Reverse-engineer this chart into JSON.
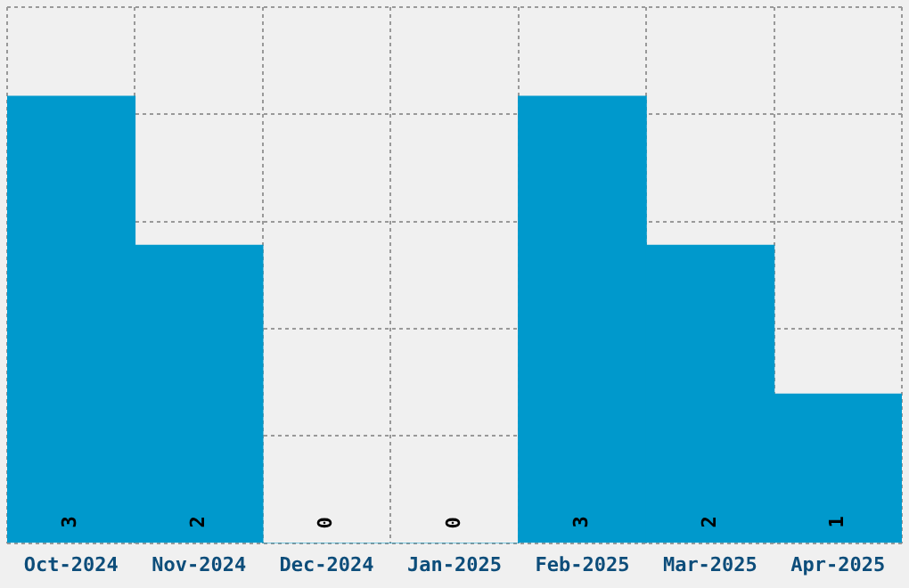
{
  "chart_data": {
    "type": "bar",
    "categories": [
      "Oct-2024",
      "Nov-2024",
      "Dec-2024",
      "Jan-2025",
      "Feb-2025",
      "Mar-2025",
      "Apr-2025"
    ],
    "values": [
      3,
      2,
      0,
      0,
      3,
      2,
      1
    ],
    "color": "#0099cc",
    "data_labels": true,
    "grid": true,
    "tick_labels": "x"
  }
}
